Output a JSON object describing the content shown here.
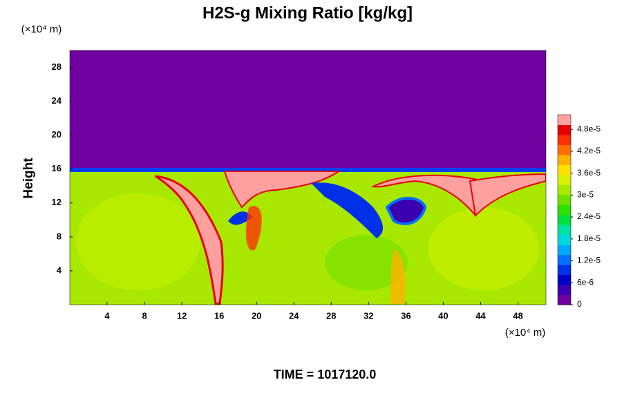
{
  "chart_data": {
    "type": "heatmap",
    "title": "H2S-g Mixing Ratio [kg/kg]",
    "y_label": "Height",
    "x_unit_label": "(×10⁴ m)",
    "y_unit_label": "(×10⁴ m)",
    "xlim": [
      0,
      51
    ],
    "ylim": [
      0,
      30
    ],
    "xticks": [
      4,
      8,
      12,
      16,
      20,
      24,
      28,
      32,
      36,
      40,
      44,
      48
    ],
    "yticks": [
      4,
      8,
      12,
      16,
      20,
      24,
      28
    ],
    "clim": [
      0,
      5.2e-05
    ],
    "cticks": [
      0,
      {
        "value": 6e-06,
        "label": "6e-6"
      },
      {
        "value": 1.2e-05,
        "label": "1.2e-5"
      },
      {
        "value": 1.8e-05,
        "label": "1.8e-5"
      },
      {
        "value": 2.4e-05,
        "label": "2.4e-5"
      },
      {
        "value": 3e-05,
        "label": "3e-5"
      },
      {
        "value": 3.6e-05,
        "label": "3.6e-5"
      },
      {
        "value": 4.2e-05,
        "label": "4.2e-5"
      },
      {
        "value": 4.8e-05,
        "label": "4.8e-5"
      }
    ],
    "colormap": [
      "#7000a0",
      "#3a00b0",
      "#0000c8",
      "#0030e8",
      "#0070ff",
      "#00a8ff",
      "#00d8e0",
      "#00e0a0",
      "#00e040",
      "#30e000",
      "#70e000",
      "#a8e800",
      "#d8f000",
      "#ffe000",
      "#ffb000",
      "#ff7000",
      "#ff3000",
      "#e80000",
      "#ffa0a0"
    ],
    "footer": "TIME = 1017120.0"
  }
}
